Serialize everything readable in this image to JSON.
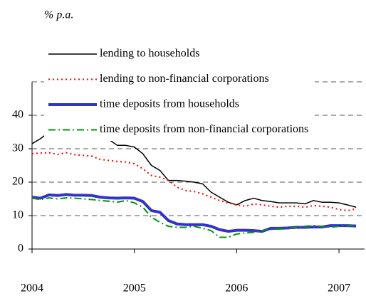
{
  "chart_data": {
    "type": "line",
    "subtitle": "% p.a.",
    "x": [
      2004,
      2004.083,
      2004.167,
      2004.25,
      2004.333,
      2004.417,
      2004.5,
      2004.583,
      2004.667,
      2004.75,
      2004.833,
      2004.917,
      2005,
      2005.083,
      2005.167,
      2005.25,
      2005.333,
      2005.417,
      2005.5,
      2005.583,
      2005.667,
      2005.75,
      2005.833,
      2005.917,
      2006,
      2006.083,
      2006.167,
      2006.25,
      2006.333,
      2006.417,
      2006.5,
      2006.583,
      2006.667,
      2006.75,
      2006.833,
      2006.917,
      2007,
      2007.083,
      2007.167
    ],
    "series": [
      {
        "name": "lending to households",
        "color": "#000000",
        "style": "solid",
        "width": 1.5,
        "values": [
          31.5,
          33,
          35,
          34,
          34.7,
          34.3,
          33.8,
          33.3,
          33,
          32.8,
          31,
          31,
          30.5,
          28.5,
          25,
          23.5,
          20.5,
          20.5,
          20.3,
          20,
          19.5,
          17,
          15.5,
          14,
          13.2,
          14.5,
          15.2,
          14.5,
          14.2,
          13.8,
          13.8,
          13.8,
          13.5,
          14.5,
          14,
          14,
          13.8,
          13.2,
          12.5
        ]
      },
      {
        "name": "lending to non-financial corporations",
        "color": "#ff0000",
        "style": "dotted",
        "width": 2,
        "values": [
          28.5,
          28.7,
          28.8,
          28.3,
          28.8,
          28.2,
          28,
          27.8,
          26.8,
          26.5,
          26.2,
          26,
          25.5,
          24,
          22,
          21.5,
          20.5,
          18.5,
          17.5,
          17.2,
          16.5,
          15.5,
          14.5,
          13.8,
          13.2,
          12.8,
          13.5,
          13.2,
          12.8,
          12.5,
          12.8,
          12.8,
          12.5,
          13,
          12.8,
          12.5,
          11.8,
          11.5,
          12
        ]
      },
      {
        "name": "time deposits from households",
        "color": "#3333cc",
        "style": "solid",
        "width": 4,
        "values": [
          15.5,
          15.2,
          16.2,
          16,
          16.3,
          16.1,
          16.1,
          16,
          15.5,
          15.3,
          15.2,
          15.3,
          15.2,
          14.2,
          11.5,
          11,
          8.5,
          7.5,
          7.3,
          7.3,
          7.3,
          6.8,
          5.8,
          5.3,
          5.6,
          5.6,
          5.5,
          5.3,
          6.2,
          6.2,
          6.3,
          6.5,
          6.5,
          6.6,
          6.6,
          7,
          7,
          7,
          6.9
        ]
      },
      {
        "name": "time deposits from non-financial corporations",
        "color": "#009900",
        "style": "dashdot",
        "width": 2,
        "values": [
          15.2,
          14.8,
          15.3,
          15,
          15.3,
          15.2,
          15,
          14.8,
          14.5,
          14.3,
          14,
          14.5,
          13.8,
          12.5,
          9.5,
          8,
          6.8,
          6.5,
          6.5,
          6.8,
          6.2,
          5.5,
          3.5,
          3.5,
          4.5,
          4.8,
          5,
          5.5,
          5.8,
          6,
          6.2,
          6.5,
          6.8,
          7,
          6.8,
          6.5,
          6.8,
          7,
          7
        ]
      }
    ],
    "xlim": [
      2004,
      2007.25
    ],
    "xticks": [
      2004,
      2005,
      2006,
      2007
    ],
    "ylim": [
      0,
      50
    ],
    "yticks": [
      0,
      10,
      20,
      30,
      40
    ],
    "grid": true,
    "legend": "top-left"
  }
}
